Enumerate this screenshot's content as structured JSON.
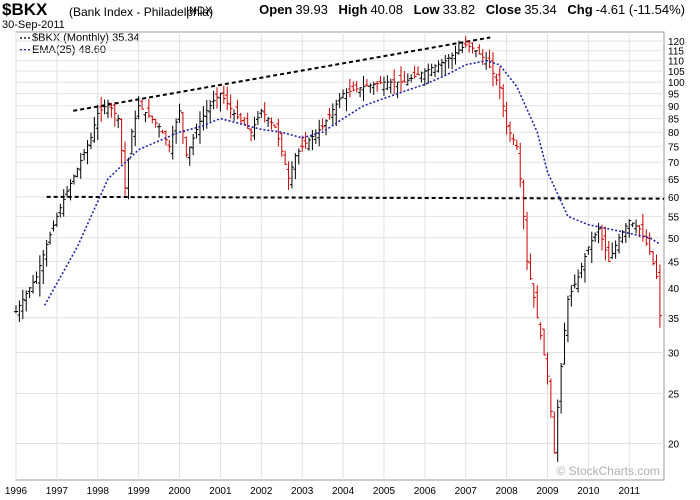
{
  "header": {
    "symbol": "$BKX",
    "name": "(Bank Index - Philadelphia)",
    "exchange": "INDX",
    "date": "30-Sep-2011",
    "open_label": "Open",
    "open_value": "39.93",
    "high_label": "High",
    "high_value": "40.08",
    "low_label": "Low",
    "low_value": "33.82",
    "close_label": "Close",
    "close_value": "35.34",
    "chg_label": "Chg",
    "chg_value": "-4.61 (-11.54%)"
  },
  "legend": {
    "price_label": "$BKX (Monthly) 35.34",
    "ema_label": "EMA(25) 48.60"
  },
  "watermark": "© StockCharts.com",
  "colors": {
    "up": "#000000",
    "down": "#cc0000",
    "ema": "#2222aa",
    "grid": "#e2e2e2",
    "trend": "#000000"
  },
  "chart_data": {
    "type": "line",
    "title": "$BKX (Bank Index - Philadelphia)",
    "xlabel": "",
    "ylabel": "",
    "yscale": "log",
    "ylim": [
      17,
      125
    ],
    "xlim": [
      1996.0,
      2011.85
    ],
    "y_ticks": [
      20,
      25,
      30,
      35,
      40,
      45,
      50,
      55,
      60,
      65,
      70,
      75,
      80,
      85,
      90,
      95,
      100,
      105,
      110,
      115,
      120
    ],
    "x_ticks": [
      "1996",
      "1997",
      "1998",
      "1999",
      "2000",
      "2001",
      "2002",
      "2003",
      "2004",
      "2005",
      "2006",
      "2007",
      "2008",
      "2009",
      "2010",
      "2011"
    ],
    "grid": true,
    "legend_position": "top-left",
    "series": [
      {
        "name": "$BKX (Monthly)",
        "style": "ohlc-bars",
        "x": [
          1996.0,
          1996.5,
          1997.0,
          1997.5,
          1997.83,
          1998.0,
          1998.25,
          1998.5,
          1998.67,
          1998.83,
          1999.0,
          1999.5,
          1999.75,
          2000.0,
          2000.17,
          2000.5,
          2000.83,
          2001.0,
          2001.33,
          2001.75,
          2002.0,
          2002.33,
          2002.67,
          2002.83,
          2003.0,
          2003.5,
          2004.0,
          2004.5,
          2005.0,
          2005.5,
          2006.0,
          2006.5,
          2007.0,
          2007.2,
          2007.5,
          2007.83,
          2008.0,
          2008.25,
          2008.5,
          2008.75,
          2009.0,
          2009.17,
          2009.33,
          2009.5,
          2009.75,
          2010.0,
          2010.25,
          2010.5,
          2010.75,
          2011.0,
          2011.25,
          2011.5,
          2011.67,
          2011.75
        ],
        "values": [
          36,
          42,
          55,
          68,
          78,
          87,
          91,
          85,
          62,
          80,
          90,
          82,
          75,
          88,
          72,
          84,
          92,
          95,
          87,
          80,
          88,
          82,
          65,
          72,
          75,
          82,
          95,
          98,
          100,
          100,
          105,
          110,
          118,
          116,
          110,
          98,
          82,
          75,
          45,
          35,
          27,
          19,
          28,
          38,
          42,
          48,
          52,
          45,
          50,
          54,
          52,
          47,
          42,
          35.34
        ]
      },
      {
        "name": "EMA(25)",
        "style": "dotted-line",
        "x": [
          1996.7,
          1997.5,
          1998.25,
          1999.0,
          1999.5,
          2000.0,
          2000.5,
          2001.0,
          2001.5,
          2002.0,
          2002.5,
          2003.0,
          2003.5,
          2004.0,
          2004.5,
          2005.0,
          2005.5,
          2006.0,
          2006.5,
          2007.0,
          2007.5,
          2007.83,
          2008.25,
          2008.75,
          2009.0,
          2009.5,
          2010.0,
          2010.5,
          2011.0,
          2011.5,
          2011.75
        ],
        "values": [
          37,
          48,
          65,
          74,
          77,
          80,
          82,
          85,
          83,
          81,
          80,
          78,
          80,
          85,
          90,
          93,
          96,
          99,
          103,
          108,
          110,
          108,
          98,
          80,
          67,
          55,
          53,
          52,
          51,
          50,
          48.6
        ]
      }
    ],
    "trendlines": [
      {
        "style": "dashed",
        "x": [
          1997.4,
          2007.6
        ],
        "values": [
          88,
          122
        ]
      },
      {
        "style": "dashed",
        "x": [
          1996.75,
          2011.85
        ],
        "values": [
          60,
          59.5
        ]
      }
    ]
  }
}
